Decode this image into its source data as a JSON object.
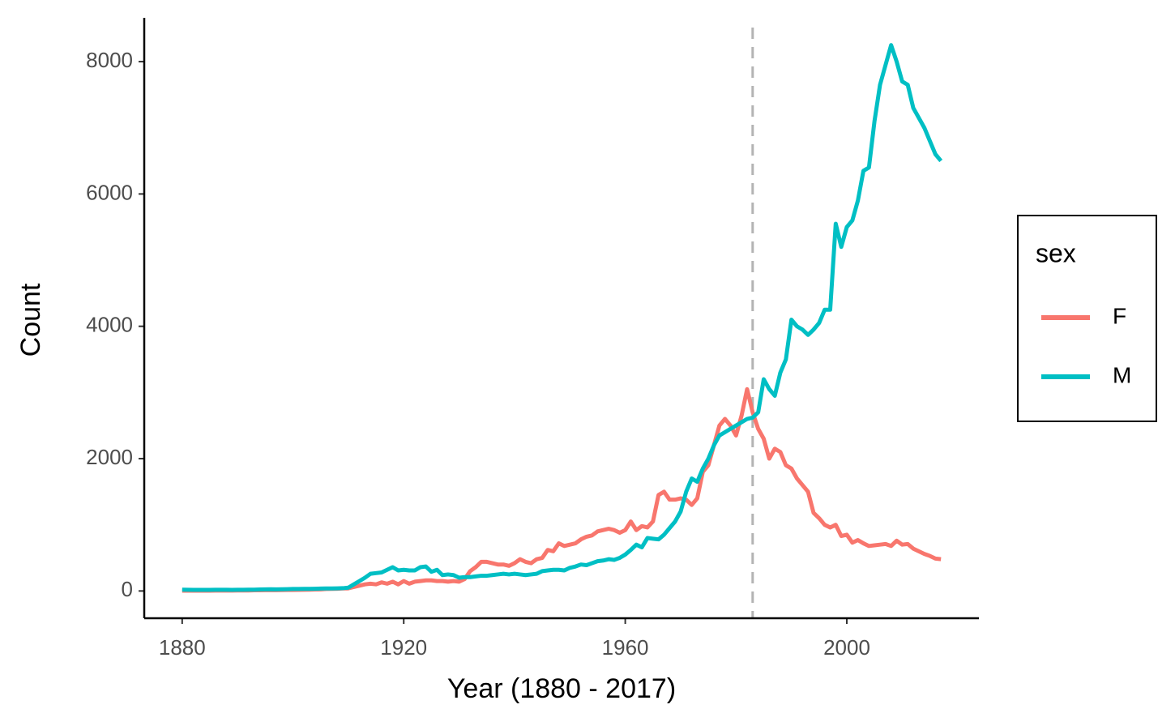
{
  "chart_data": {
    "type": "line",
    "x_label": "Year (1880 - 2017)",
    "y_label": "Count",
    "legend_title": "sex",
    "legend_position": "right",
    "grid": false,
    "vline": 1983,
    "vline_color": "#b3b3b3",
    "xlim": [
      1873.15,
      2023.85
    ],
    "xticks": [
      1880,
      1920,
      1960,
      2000
    ],
    "ylim": [
      -412,
      8662
    ],
    "yticks": [
      0,
      2000,
      4000,
      6000,
      8000
    ],
    "x": [
      1880,
      1881,
      1882,
      1883,
      1884,
      1885,
      1886,
      1887,
      1888,
      1889,
      1890,
      1891,
      1892,
      1893,
      1894,
      1895,
      1896,
      1897,
      1898,
      1899,
      1900,
      1901,
      1902,
      1903,
      1904,
      1905,
      1906,
      1907,
      1908,
      1909,
      1910,
      1911,
      1912,
      1913,
      1914,
      1915,
      1916,
      1917,
      1918,
      1919,
      1920,
      1921,
      1922,
      1923,
      1924,
      1925,
      1926,
      1927,
      1928,
      1929,
      1930,
      1931,
      1932,
      1933,
      1934,
      1935,
      1936,
      1937,
      1938,
      1939,
      1940,
      1941,
      1942,
      1943,
      1944,
      1945,
      1946,
      1947,
      1948,
      1949,
      1950,
      1951,
      1952,
      1953,
      1954,
      1955,
      1956,
      1957,
      1958,
      1959,
      1960,
      1961,
      1962,
      1963,
      1964,
      1965,
      1966,
      1967,
      1968,
      1969,
      1970,
      1971,
      1972,
      1973,
      1974,
      1975,
      1976,
      1977,
      1978,
      1979,
      1980,
      1981,
      1982,
      1983,
      1984,
      1985,
      1986,
      1987,
      1988,
      1989,
      1990,
      1991,
      1992,
      1993,
      1994,
      1995,
      1996,
      1997,
      1998,
      1999,
      2000,
      2001,
      2002,
      2003,
      2004,
      2005,
      2006,
      2007,
      2008,
      2009,
      2010,
      2011,
      2012,
      2013,
      2014,
      2015,
      2016,
      2017
    ],
    "series": [
      {
        "name": "F",
        "color": "#F8766D",
        "values": [
          5,
          5,
          5,
          5,
          5,
          5,
          6,
          6,
          6,
          6,
          8,
          8,
          8,
          10,
          10,
          12,
          12,
          12,
          14,
          15,
          15,
          16,
          18,
          20,
          22,
          24,
          30,
          32,
          34,
          38,
          40,
          60,
          80,
          100,
          110,
          100,
          130,
          110,
          140,
          100,
          150,
          110,
          140,
          150,
          160,
          160,
          150,
          150,
          140,
          150,
          140,
          180,
          300,
          360,
          440,
          440,
          420,
          400,
          400,
          380,
          420,
          480,
          440,
          420,
          480,
          500,
          620,
          600,
          720,
          680,
          700,
          720,
          780,
          820,
          840,
          900,
          920,
          940,
          920,
          880,
          920,
          1050,
          920,
          980,
          960,
          1050,
          1450,
          1500,
          1380,
          1380,
          1400,
          1380,
          1300,
          1400,
          1800,
          1900,
          2200,
          2500,
          2600,
          2500,
          2350,
          2650,
          3050,
          2700,
          2450,
          2300,
          2000,
          2150,
          2100,
          1900,
          1850,
          1700,
          1600,
          1500,
          1180,
          1100,
          1000,
          960,
          1000,
          830,
          850,
          730,
          770,
          720,
          680,
          690,
          700,
          710,
          680,
          760,
          700,
          710,
          640,
          600,
          560,
          530,
          490,
          480
        ]
      },
      {
        "name": "M",
        "color": "#00BFC4",
        "values": [
          20,
          18,
          17,
          16,
          16,
          17,
          18,
          18,
          18,
          17,
          18,
          18,
          19,
          20,
          22,
          24,
          25,
          24,
          26,
          28,
          30,
          30,
          32,
          32,
          34,
          36,
          38,
          38,
          40,
          42,
          50,
          100,
          150,
          200,
          260,
          270,
          280,
          320,
          360,
          310,
          320,
          310,
          310,
          360,
          370,
          290,
          320,
          240,
          250,
          240,
          200,
          210,
          210,
          220,
          230,
          230,
          240,
          250,
          260,
          250,
          260,
          250,
          240,
          250,
          260,
          300,
          310,
          320,
          320,
          310,
          350,
          370,
          400,
          390,
          420,
          450,
          460,
          480,
          470,
          500,
          550,
          620,
          700,
          660,
          800,
          790,
          780,
          850,
          950,
          1050,
          1200,
          1500,
          1700,
          1650,
          1850,
          2000,
          2200,
          2350,
          2400,
          2450,
          2500,
          2550,
          2600,
          2620,
          2700,
          3200,
          3050,
          2950,
          3300,
          3500,
          4100,
          4000,
          3950,
          3870,
          3950,
          4050,
          4250,
          4250,
          5550,
          5200,
          5500,
          5600,
          5900,
          6350,
          6400,
          7100,
          7650,
          7950,
          8250,
          8000,
          7700,
          7650,
          7300,
          7150,
          7000,
          6800,
          6600,
          6500
        ]
      }
    ]
  }
}
